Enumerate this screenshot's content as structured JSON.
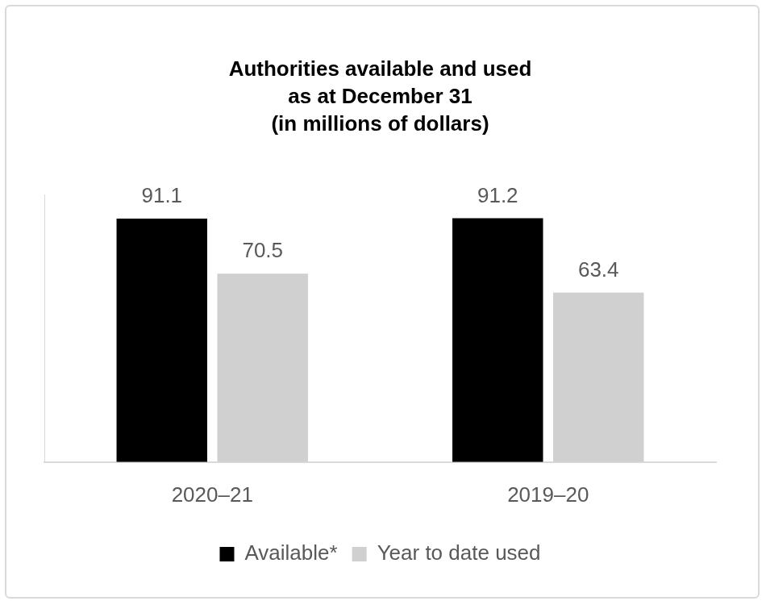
{
  "chart_data": {
    "type": "bar",
    "title": [
      "Authorities available and used",
      "as at December 31",
      "(in millions of dollars)"
    ],
    "categories": [
      "2020–21",
      "2019–20"
    ],
    "series": [
      {
        "name": "Available*",
        "color": "#000000",
        "values": [
          91.1,
          91.2
        ]
      },
      {
        "name": "Year to date used",
        "color": "#d0d0d0",
        "values": [
          70.5,
          63.4
        ]
      }
    ],
    "ylim": [
      0,
      100
    ],
    "grid": false,
    "legend": "bottom",
    "data_labels": true,
    "tick_labels": "x"
  }
}
